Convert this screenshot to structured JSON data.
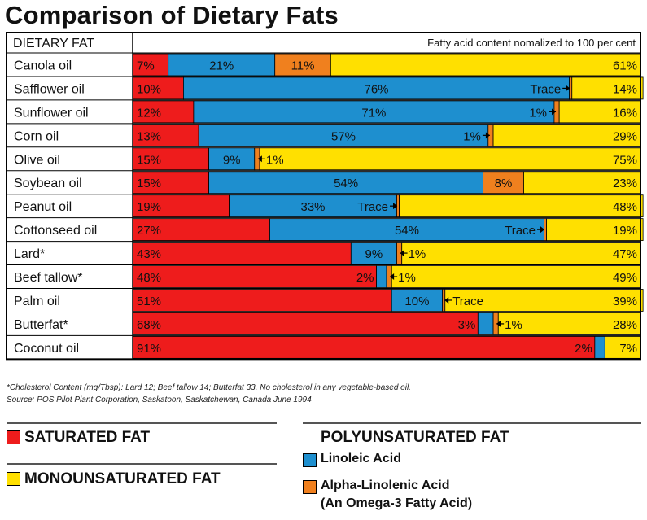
{
  "page": {
    "title": "Comparison of Dietary Fats",
    "footnote_cholesterol": "*Cholesterol Content (mg/Tbsp): Lard 12; Beef tallow 14; Butterfat 33. No cholesterol in any vegetable-based oil.",
    "footnote_source": "Source: POS Pilot Plant Corporation, Saskatoon, Saskatchewan, Canada June 1994"
  },
  "legend": {
    "saturated": "SATURATED FAT",
    "monounsaturated": "MONOUNSATURATED FAT",
    "polyunsaturated": "POLYUNSATURATED FAT",
    "linoleic": "Linoleic Acid",
    "alpha_linolenic": "Alpha-Linolenic Acid",
    "omega3_note": "(An Omega-3 Fatty Acid)"
  },
  "chart_data": {
    "type": "bar",
    "stacked": true,
    "orientation": "horizontal",
    "column_header": "DIETARY FAT",
    "subtitle": "Fatty acid content nomalized to 100 per cent",
    "xlim": [
      0,
      100
    ],
    "colors": {
      "saturated": "#ee1c1c",
      "linoleic": "#1e8fcf",
      "alpha_linolenic": "#f0801e",
      "monounsaturated": "#ffe000"
    },
    "categories": [
      "Canola oil",
      "Safflower oil",
      "Sunflower oil",
      "Corn oil",
      "Olive oil",
      "Soybean oil",
      "Peanut oil",
      "Cottonseed oil",
      "Lard*",
      "Beef tallow*",
      "Palm oil",
      "Butterfat*",
      "Coconut oil"
    ],
    "series": [
      {
        "name": "SATURATED FAT",
        "key": "saturated",
        "values": [
          7,
          10,
          12,
          13,
          15,
          15,
          19,
          27,
          43,
          48,
          51,
          68,
          91
        ]
      },
      {
        "name": "Linoleic Acid",
        "key": "linoleic",
        "values": [
          21,
          76,
          71,
          57,
          9,
          54,
          33,
          54,
          9,
          2,
          10,
          3,
          2
        ]
      },
      {
        "name": "Alpha-Linolenic Acid",
        "key": "alpha_linolenic",
        "values": [
          11,
          0.5,
          1,
          1,
          1,
          8,
          0.5,
          0.5,
          1,
          1,
          0.5,
          1,
          0
        ]
      },
      {
        "name": "MONOUNSATURATED FAT",
        "key": "monounsaturated",
        "values": [
          61,
          14,
          16,
          29,
          75,
          23,
          48,
          19,
          47,
          49,
          39,
          28,
          7
        ]
      }
    ],
    "labels": [
      {
        "saturated": "7%",
        "linoleic": "21%",
        "alpha_linolenic": "11%",
        "monounsaturated": "61%"
      },
      {
        "saturated": "10%",
        "linoleic": "76%",
        "alpha_linolenic": "Trace",
        "monounsaturated": "14%"
      },
      {
        "saturated": "12%",
        "linoleic": "71%",
        "alpha_linolenic": "1%",
        "monounsaturated": "16%"
      },
      {
        "saturated": "13%",
        "linoleic": "57%",
        "alpha_linolenic": "1%",
        "monounsaturated": "29%"
      },
      {
        "saturated": "15%",
        "linoleic": "9%",
        "alpha_linolenic": "1%",
        "monounsaturated": "75%"
      },
      {
        "saturated": "15%",
        "linoleic": "54%",
        "alpha_linolenic": "8%",
        "monounsaturated": "23%"
      },
      {
        "saturated": "19%",
        "linoleic": "33%",
        "alpha_linolenic": "Trace",
        "monounsaturated": "48%"
      },
      {
        "saturated": "27%",
        "linoleic": "54%",
        "alpha_linolenic": "Trace",
        "monounsaturated": "19%"
      },
      {
        "saturated": "43%",
        "linoleic": "9%",
        "alpha_linolenic": "1%",
        "monounsaturated": "47%"
      },
      {
        "saturated": "48%",
        "linoleic": "2%",
        "alpha_linolenic": "1%",
        "monounsaturated": "49%"
      },
      {
        "saturated": "51%",
        "linoleic": "10%",
        "alpha_linolenic": "Trace",
        "monounsaturated": "39%"
      },
      {
        "saturated": "68%",
        "linoleic": "3%",
        "alpha_linolenic": "1%",
        "monounsaturated": "28%"
      },
      {
        "saturated": "91%",
        "linoleic": "2%",
        "alpha_linolenic": "",
        "monounsaturated": "7%"
      }
    ]
  }
}
